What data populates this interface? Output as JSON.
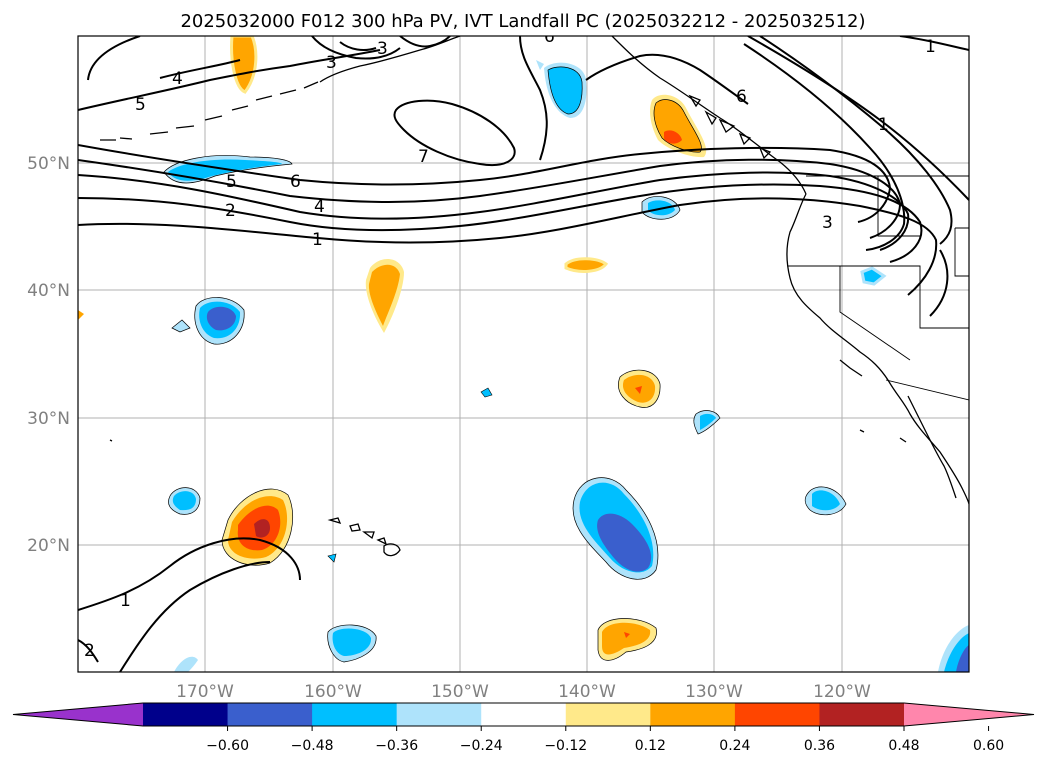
{
  "title": "2025032000 F012 300 hPa PV, IVT Landfall PC (2025032212 - 2025032512)",
  "map": {
    "lon_range": [
      -180,
      -110
    ],
    "lat_range": [
      10,
      60
    ],
    "lat_ticks": [
      {
        "value": 20,
        "label": "20°N"
      },
      {
        "value": 30,
        "label": "30°N"
      },
      {
        "value": 40,
        "label": "40°N"
      },
      {
        "value": 50,
        "label": "50°N"
      }
    ],
    "lon_ticks": [
      {
        "value": -170,
        "label": "170°W"
      },
      {
        "value": -160,
        "label": "160°W"
      },
      {
        "value": -150,
        "label": "150°W"
      },
      {
        "value": -140,
        "label": "140°W"
      },
      {
        "value": -130,
        "label": "130°W"
      },
      {
        "value": -120,
        "label": "120°W"
      }
    ],
    "grid": true
  },
  "contour_labels": [
    "1",
    "2",
    "3",
    "4",
    "5",
    "6",
    "7"
  ],
  "colorbar": {
    "extend": "both",
    "colors": [
      "#9932cc",
      "#00008b",
      "#3a5fcd",
      "#00bfff",
      "#aee3fb",
      "#ffffff",
      "#ffe98a",
      "#ffa500",
      "#ff4500",
      "#b22222",
      "#ff86ac"
    ],
    "ticks": [
      "−0.60",
      "−0.48",
      "−0.36",
      "−0.24",
      "−0.12",
      "0.12",
      "0.24",
      "0.36",
      "0.48",
      "0.60"
    ]
  },
  "colors": {
    "pos_light": "#ffe98a",
    "pos_mid": "#ffa500",
    "pos_strong": "#ff4500",
    "pos_max": "#b22222",
    "neg_light": "#aee3fb",
    "neg_mid": "#00bfff",
    "neg_strong": "#3a5fcd"
  }
}
